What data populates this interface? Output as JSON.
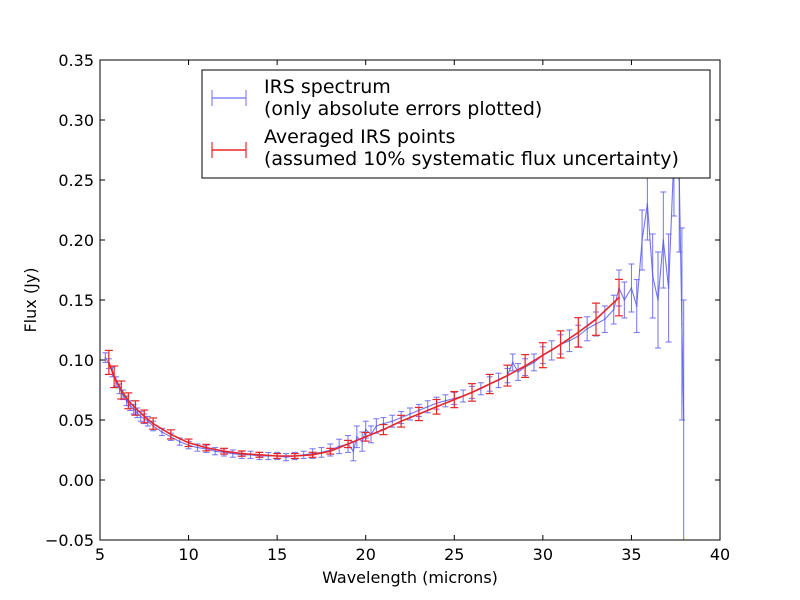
{
  "chart_data": {
    "type": "line",
    "title": "",
    "xlabel": "Wavelength (microns)",
    "ylabel": "Flux (Jy)",
    "xlim": [
      5,
      40
    ],
    "ylim": [
      -0.05,
      0.35
    ],
    "xticks": [
      5,
      10,
      15,
      20,
      25,
      30,
      35,
      40
    ],
    "xtick_labels": [
      "5",
      "10",
      "15",
      "20",
      "25",
      "30",
      "35",
      "40"
    ],
    "yticks": [
      -0.05,
      0.0,
      0.05,
      0.1,
      0.15,
      0.2,
      0.25,
      0.3,
      0.35
    ],
    "ytick_labels": [
      "−0.05",
      "0.00",
      "0.05",
      "0.10",
      "0.15",
      "0.20",
      "0.25",
      "0.30",
      "0.35"
    ],
    "grid": false,
    "legend_position": "top-right",
    "series": [
      {
        "name": "IRS spectrum",
        "legend_line2": "(only absolute errors plotted)",
        "color": "#5a5af0",
        "errorbars": true,
        "x": [
          5.3,
          5.5,
          5.7,
          5.9,
          6.1,
          6.3,
          6.5,
          6.7,
          6.9,
          7.1,
          7.3,
          7.5,
          7.7,
          8.0,
          8.5,
          9.0,
          9.5,
          10.0,
          10.5,
          11.0,
          11.5,
          12.0,
          12.5,
          13.0,
          13.5,
          14.0,
          14.5,
          15.0,
          15.5,
          16.0,
          16.5,
          17.0,
          17.5,
          18.0,
          18.5,
          19.0,
          19.3,
          19.5,
          19.8,
          20.0,
          20.3,
          20.6,
          21.0,
          21.5,
          22.0,
          22.5,
          23.0,
          23.5,
          24.0,
          24.5,
          25.0,
          25.5,
          26.0,
          26.5,
          27.0,
          27.5,
          28.0,
          28.3,
          28.6,
          29.0,
          29.5,
          30.0,
          30.5,
          31.0,
          31.5,
          32.0,
          32.5,
          33.0,
          33.5,
          34.0,
          34.3,
          34.6,
          35.0,
          35.3,
          35.6,
          35.9,
          36.2,
          36.5,
          36.8,
          37.1,
          37.4,
          37.7,
          37.85,
          37.95
        ],
        "y": [
          0.102,
          0.097,
          0.09,
          0.082,
          0.076,
          0.071,
          0.066,
          0.062,
          0.059,
          0.056,
          0.053,
          0.051,
          0.049,
          0.045,
          0.04,
          0.036,
          0.032,
          0.029,
          0.027,
          0.026,
          0.024,
          0.023,
          0.022,
          0.021,
          0.021,
          0.02,
          0.02,
          0.02,
          0.019,
          0.02,
          0.021,
          0.022,
          0.023,
          0.025,
          0.028,
          0.03,
          0.024,
          0.036,
          0.032,
          0.042,
          0.038,
          0.045,
          0.047,
          0.049,
          0.052,
          0.055,
          0.058,
          0.061,
          0.064,
          0.066,
          0.068,
          0.07,
          0.073,
          0.076,
          0.08,
          0.083,
          0.087,
          0.098,
          0.09,
          0.094,
          0.098,
          0.104,
          0.108,
          0.113,
          0.116,
          0.12,
          0.126,
          0.13,
          0.134,
          0.142,
          0.16,
          0.15,
          0.16,
          0.145,
          0.2,
          0.23,
          0.17,
          0.15,
          0.2,
          0.16,
          0.27,
          0.25,
          0.13,
          0.05
        ],
        "yerr": [
          0.004,
          0.004,
          0.004,
          0.004,
          0.004,
          0.004,
          0.004,
          0.004,
          0.004,
          0.004,
          0.004,
          0.004,
          0.004,
          0.004,
          0.003,
          0.003,
          0.003,
          0.003,
          0.003,
          0.003,
          0.003,
          0.003,
          0.003,
          0.003,
          0.003,
          0.003,
          0.003,
          0.003,
          0.003,
          0.003,
          0.003,
          0.004,
          0.004,
          0.005,
          0.006,
          0.007,
          0.008,
          0.009,
          0.008,
          0.007,
          0.007,
          0.006,
          0.005,
          0.005,
          0.005,
          0.005,
          0.005,
          0.005,
          0.005,
          0.005,
          0.005,
          0.005,
          0.005,
          0.005,
          0.006,
          0.006,
          0.006,
          0.007,
          0.007,
          0.007,
          0.007,
          0.007,
          0.008,
          0.008,
          0.009,
          0.009,
          0.01,
          0.01,
          0.011,
          0.012,
          0.015,
          0.015,
          0.02,
          0.022,
          0.025,
          0.03,
          0.035,
          0.04,
          0.04,
          0.045,
          0.05,
          0.06,
          0.08,
          0.1
        ]
      },
      {
        "name": "Averaged IRS points",
        "legend_line2": "(assumed 10% systematic flux uncertainty)",
        "color": "#e8262a",
        "errorbars": true,
        "x": [
          5.5,
          5.8,
          6.2,
          6.6,
          7.0,
          7.5,
          8.0,
          9.0,
          10.0,
          11.0,
          12.0,
          13.0,
          14.0,
          15.0,
          16.0,
          17.0,
          18.0,
          19.0,
          20.0,
          21.0,
          22.0,
          23.0,
          24.0,
          25.0,
          26.0,
          27.0,
          28.0,
          29.0,
          30.0,
          31.0,
          32.0,
          33.0,
          34.3
        ],
        "y": [
          0.098,
          0.086,
          0.075,
          0.066,
          0.06,
          0.053,
          0.047,
          0.038,
          0.031,
          0.027,
          0.024,
          0.022,
          0.021,
          0.02,
          0.02,
          0.021,
          0.024,
          0.03,
          0.036,
          0.042,
          0.049,
          0.055,
          0.061,
          0.067,
          0.073,
          0.08,
          0.087,
          0.095,
          0.104,
          0.113,
          0.123,
          0.134,
          0.152
        ],
        "yerr": [
          0.01,
          0.009,
          0.0075,
          0.0066,
          0.006,
          0.0053,
          0.0047,
          0.0038,
          0.0031,
          0.0027,
          0.0024,
          0.0022,
          0.0021,
          0.002,
          0.002,
          0.0021,
          0.0024,
          0.003,
          0.0036,
          0.0042,
          0.0049,
          0.0055,
          0.0061,
          0.0067,
          0.0073,
          0.008,
          0.0087,
          0.0095,
          0.0104,
          0.0113,
          0.0123,
          0.0134,
          0.0152
        ]
      }
    ]
  }
}
